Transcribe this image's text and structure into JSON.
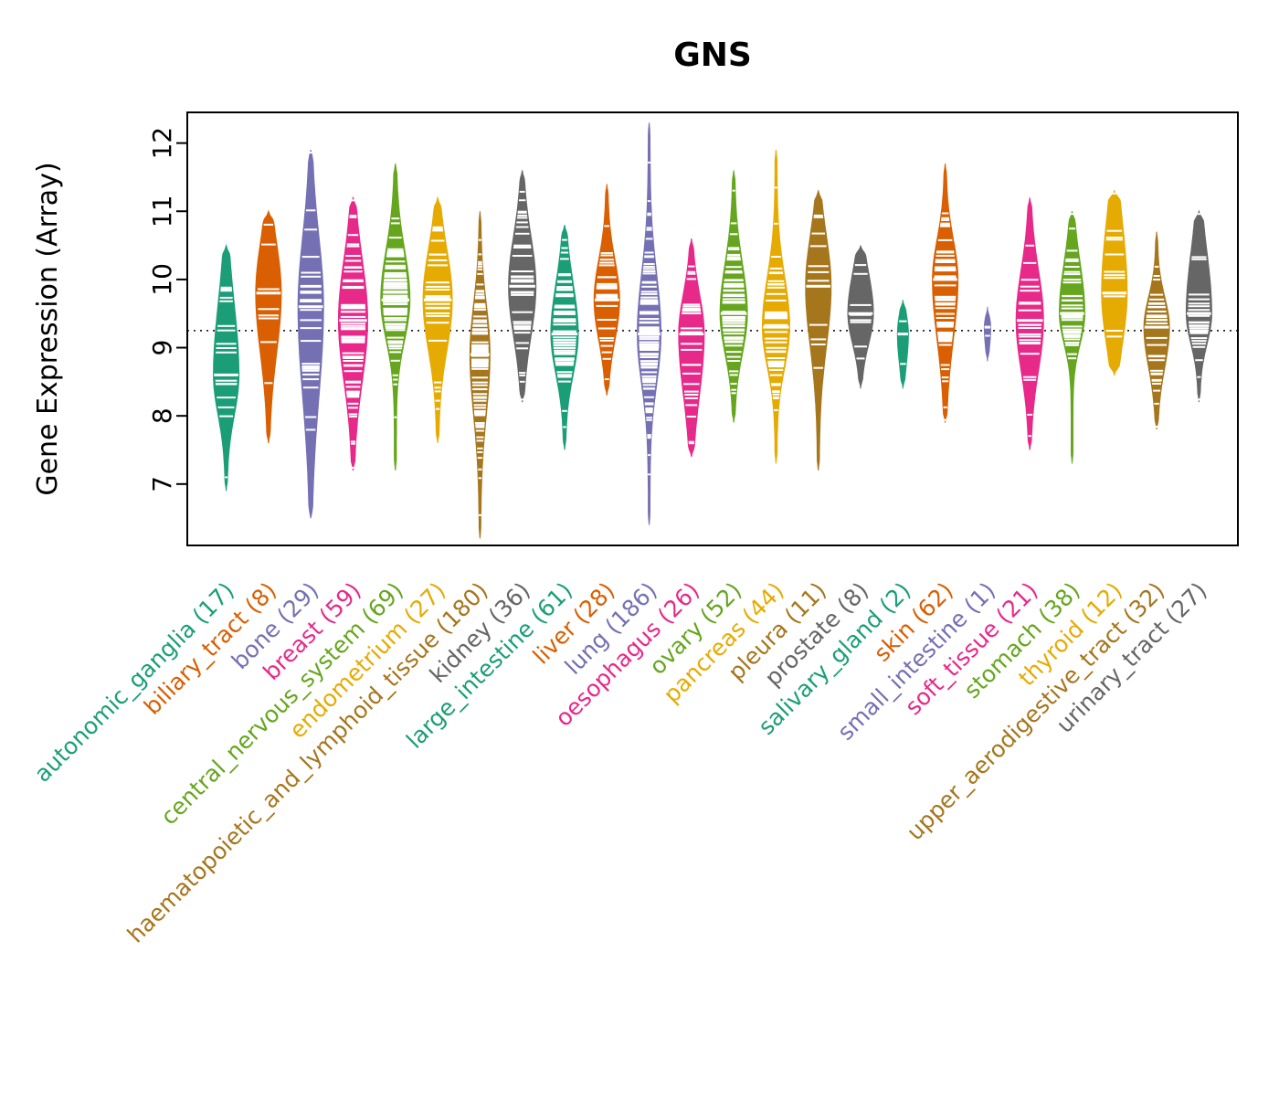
{
  "title": "GNS",
  "chart_data": {
    "type": "violin",
    "title": "GNS",
    "ylabel": "Gene Expression (Array)",
    "xlabel": "",
    "ylim": [
      6.1,
      12.45
    ],
    "yticks": [
      7,
      8,
      9,
      10,
      11,
      12
    ],
    "reference_line": 9.25,
    "reference_line_style": "dotted",
    "legend": "none",
    "grid": false,
    "palette": [
      "#1b9e77",
      "#d95f02",
      "#7570b3",
      "#e7298a",
      "#66a61e",
      "#e6ab02",
      "#a6761d",
      "#666666"
    ],
    "groups": [
      {
        "label": "autonomic_ganglia",
        "n": 17,
        "color": "#1b9e77",
        "min": 6.9,
        "q1": 8.2,
        "median": 8.6,
        "q3": 9.3,
        "max": 10.5,
        "width": 14
      },
      {
        "label": "biliary_tract",
        "n": 8,
        "color": "#d95f02",
        "min": 7.6,
        "q1": 9.2,
        "median": 9.8,
        "q3": 10.3,
        "max": 11.0,
        "width": 14
      },
      {
        "label": "bone",
        "n": 29,
        "color": "#7570b3",
        "min": 6.5,
        "q1": 8.7,
        "median": 9.6,
        "q3": 10.3,
        "max": 11.9,
        "width": 14
      },
      {
        "label": "breast",
        "n": 59,
        "color": "#e7298a",
        "min": 7.2,
        "q1": 8.8,
        "median": 9.4,
        "q3": 10.0,
        "max": 11.2,
        "width": 16
      },
      {
        "label": "central_nervous_system",
        "n": 69,
        "color": "#66a61e",
        "min": 7.2,
        "q1": 9.3,
        "median": 9.7,
        "q3": 10.2,
        "max": 11.7,
        "width": 16
      },
      {
        "label": "endometrium",
        "n": 27,
        "color": "#e6ab02",
        "min": 7.6,
        "q1": 9.2,
        "median": 9.7,
        "q3": 10.2,
        "max": 11.2,
        "width": 16
      },
      {
        "label": "haematopoietic_and_lymphoid_tissue",
        "n": 180,
        "color": "#a6761d",
        "min": 6.2,
        "q1": 8.3,
        "median": 8.9,
        "q3": 9.4,
        "max": 11.0,
        "width": 11
      },
      {
        "label": "kidney",
        "n": 36,
        "color": "#666666",
        "min": 8.2,
        "q1": 9.4,
        "median": 9.9,
        "q3": 10.4,
        "max": 11.6,
        "width": 15
      },
      {
        "label": "large_intestine",
        "n": 61,
        "color": "#1b9e77",
        "min": 7.5,
        "q1": 8.8,
        "median": 9.2,
        "q3": 9.7,
        "max": 10.8,
        "width": 15
      },
      {
        "label": "liver",
        "n": 28,
        "color": "#d95f02",
        "min": 8.3,
        "q1": 9.3,
        "median": 9.7,
        "q3": 10.1,
        "max": 11.4,
        "width": 14
      },
      {
        "label": "lung",
        "n": 186,
        "color": "#7570b3",
        "min": 6.4,
        "q1": 8.7,
        "median": 9.2,
        "q3": 9.8,
        "max": 12.3,
        "width": 13
      },
      {
        "label": "oesophagus",
        "n": 26,
        "color": "#e7298a",
        "min": 7.4,
        "q1": 8.6,
        "median": 9.2,
        "q3": 9.6,
        "max": 10.6,
        "width": 14
      },
      {
        "label": "ovary",
        "n": 52,
        "color": "#66a61e",
        "min": 7.9,
        "q1": 9.1,
        "median": 9.5,
        "q3": 10.0,
        "max": 11.6,
        "width": 15
      },
      {
        "label": "pancreas",
        "n": 44,
        "color": "#e6ab02",
        "min": 7.3,
        "q1": 8.9,
        "median": 9.3,
        "q3": 9.8,
        "max": 11.9,
        "width": 15
      },
      {
        "label": "pleura",
        "n": 11,
        "color": "#a6761d",
        "min": 7.2,
        "q1": 9.3,
        "median": 9.9,
        "q3": 10.4,
        "max": 11.3,
        "width": 14
      },
      {
        "label": "prostate",
        "n": 8,
        "color": "#666666",
        "min": 8.4,
        "q1": 9.2,
        "median": 9.5,
        "q3": 9.9,
        "max": 10.5,
        "width": 14
      },
      {
        "label": "salivary_gland",
        "n": 2,
        "color": "#1b9e77",
        "min": 8.4,
        "q1": 8.9,
        "median": 9.2,
        "q3": 9.4,
        "max": 9.7,
        "width": 6
      },
      {
        "label": "skin",
        "n": 62,
        "color": "#d95f02",
        "min": 7.9,
        "q1": 9.4,
        "median": 10.0,
        "q3": 10.4,
        "max": 11.7,
        "width": 14
      },
      {
        "label": "small_intestine",
        "n": 1,
        "color": "#7570b3",
        "min": 8.8,
        "q1": 9.1,
        "median": 9.3,
        "q3": 9.4,
        "max": 9.6,
        "width": 3.5
      },
      {
        "label": "soft_tissue",
        "n": 21,
        "color": "#e7298a",
        "min": 7.5,
        "q1": 8.9,
        "median": 9.4,
        "q3": 9.9,
        "max": 11.2,
        "width": 15
      },
      {
        "label": "stomach",
        "n": 38,
        "color": "#66a61e",
        "min": 7.3,
        "q1": 9.2,
        "median": 9.5,
        "q3": 10.0,
        "max": 11.0,
        "width": 14
      },
      {
        "label": "thyroid",
        "n": 12,
        "color": "#e6ab02",
        "min": 8.6,
        "q1": 9.3,
        "median": 9.8,
        "q3": 10.5,
        "max": 11.3,
        "width": 14
      },
      {
        "label": "upper_aerodigestive_tract",
        "n": 32,
        "color": "#a6761d",
        "min": 7.8,
        "q1": 8.9,
        "median": 9.3,
        "q3": 9.6,
        "max": 10.7,
        "width": 14
      },
      {
        "label": "urinary_tract",
        "n": 27,
        "color": "#666666",
        "min": 8.2,
        "q1": 9.2,
        "median": 9.5,
        "q3": 10.1,
        "max": 11.0,
        "width": 14
      }
    ]
  }
}
